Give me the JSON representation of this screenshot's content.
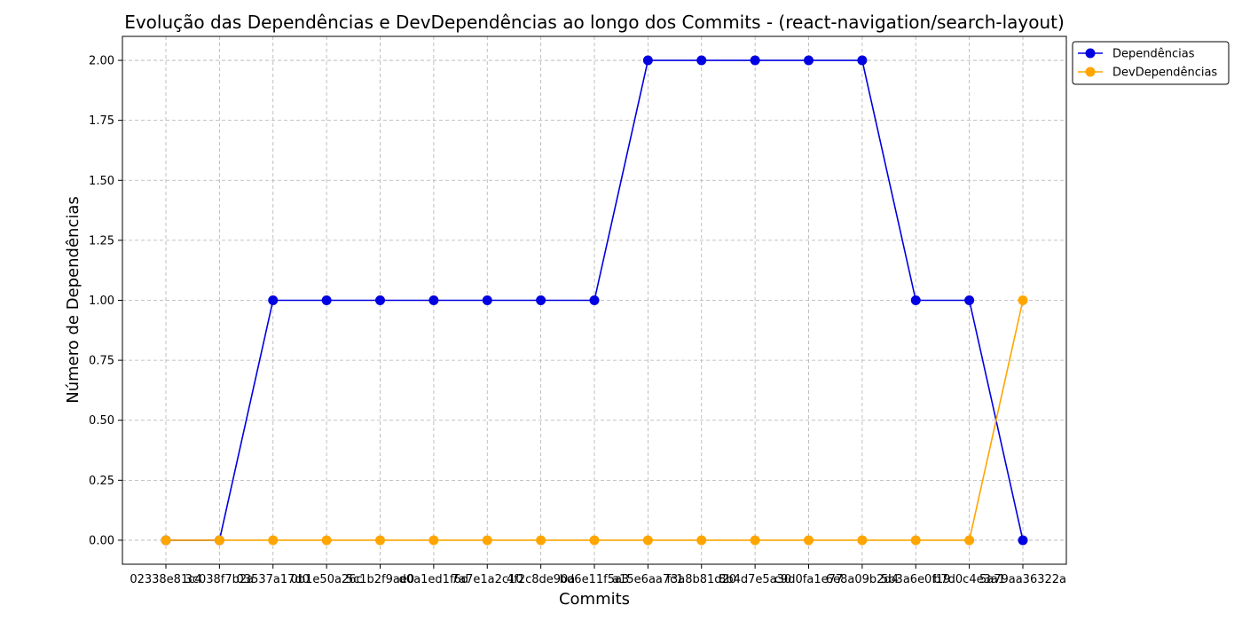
{
  "chart_data": {
    "type": "line",
    "title": "Evolução das Dependências e DevDependências ao longo dos Commits - (react-navigation/search-layout)",
    "xlabel": "Commits",
    "ylabel": "Número de Dependências",
    "categories": [
      "02338e81c4",
      "3c038f7b2a",
      "03537a17d0",
      "0b1e50a26c",
      "5c1b2f9ae0",
      "d0a1ed1f6d",
      "7a7e1a2c10",
      "4f2c8de90a",
      "bd6e11f5a3",
      "a15e6aa7c1",
      "f3a8b81d20",
      "8b4d7e5a30",
      "c9d0fa1e77",
      "6e8a09b2d4",
      "5b3a6e0f19",
      "b7d0c4e3a1",
      "5a79aa36322a"
    ],
    "series": [
      {
        "name": "Dependências",
        "color": "#0000e0",
        "values": [
          0,
          0,
          1,
          1,
          1,
          1,
          1,
          1,
          1,
          2,
          2,
          2,
          2,
          2,
          1,
          1,
          0
        ]
      },
      {
        "name": "DevDependências",
        "color": "#ffa500",
        "values": [
          0,
          0,
          0,
          0,
          0,
          0,
          0,
          0,
          0,
          0,
          0,
          0,
          0,
          0,
          0,
          0,
          1
        ]
      }
    ],
    "ylim": [
      -0.1,
      2.1
    ],
    "yticks": [
      "0.00",
      "0.25",
      "0.50",
      "0.75",
      "1.00",
      "1.25",
      "1.50",
      "1.75",
      "2.00"
    ],
    "grid": true,
    "legend_position": "top-right outside"
  }
}
